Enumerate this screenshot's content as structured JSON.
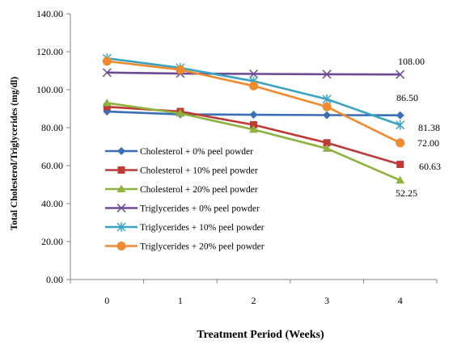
{
  "chart_data": {
    "type": "line",
    "xlabel": "Treatment Period (Weeks)",
    "ylabel": "Total Cholesterol/Triglycerides (mg/dl)",
    "x": [
      0,
      1,
      2,
      3,
      4
    ],
    "x_ticks": [
      "0",
      "1",
      "2",
      "3",
      "4"
    ],
    "ylim": [
      0,
      140
    ],
    "y_ticks": [
      "0.00",
      "20.00",
      "40.00",
      "60.00",
      "80.00",
      "100.00",
      "120.00",
      "140.00"
    ],
    "grid": false,
    "legend_position": "center-left",
    "series": [
      {
        "name": "Cholesterol + 0% peel powder",
        "values": [
          88.5,
          87.0,
          86.8,
          86.6,
          86.5
        ],
        "color": "#3a6eb5",
        "marker": "diamond"
      },
      {
        "name": "Cholesterol + 10% peel powder",
        "values": [
          91.0,
          88.5,
          81.5,
          72.0,
          60.63
        ],
        "color": "#be3a34",
        "marker": "square"
      },
      {
        "name": "Cholesterol + 20% peel powder",
        "values": [
          93.0,
          87.5,
          79.0,
          69.0,
          52.25
        ],
        "color": "#8db33e",
        "marker": "triangle"
      },
      {
        "name": "Triglycerides + 0% peel powder",
        "values": [
          109.0,
          108.5,
          108.3,
          108.1,
          108.0
        ],
        "color": "#6b4a96",
        "marker": "x"
      },
      {
        "name": "Triglycerides + 10% peel powder",
        "values": [
          116.5,
          111.5,
          104.5,
          95.0,
          81.38
        ],
        "color": "#3aa3c2",
        "marker": "star"
      },
      {
        "name": "Triglycerides + 20% peel powder",
        "values": [
          115.0,
          110.5,
          102.0,
          91.0,
          72.0
        ],
        "color": "#ef8a2e",
        "marker": "circle"
      }
    ],
    "annotations": [
      "108.00",
      "86.50",
      "81.38",
      "72.00",
      "60.63",
      "52.25"
    ]
  }
}
